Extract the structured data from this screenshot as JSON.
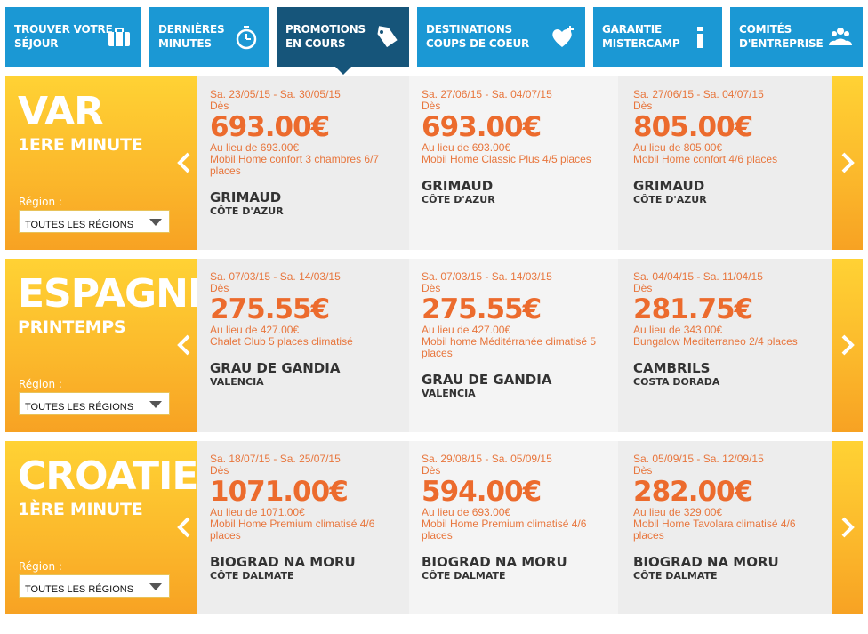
{
  "nav": {
    "items": [
      {
        "label": "TROUVER VOTRE\nSÉJOUR",
        "icon": "suitcase-icon",
        "active": false
      },
      {
        "label": "DERNIÈRES\nMINUTES",
        "icon": "stopwatch-icon",
        "active": false
      },
      {
        "label": "PROMOTIONS\nEN COURS",
        "icon": "price-tag-icon",
        "active": true
      },
      {
        "label": "DESTINATIONS\nCOUPS DE COEUR",
        "icon": "heart-plus-icon",
        "active": false
      },
      {
        "label": "GARANTIE\nMISTERCAMP",
        "icon": "info-icon",
        "active": false
      },
      {
        "label": "COMITÉS\nD'ENTREPRISE",
        "icon": "group-icon",
        "active": false
      }
    ]
  },
  "colors": {
    "nav_blue": "#1b98d4",
    "nav_active": "#16557a",
    "accent_orange": "#ec6b2d",
    "panel_yellow": "#fbb72b"
  },
  "promos": [
    {
      "destination": "VAR",
      "subtitle": "1ERE MINUTE",
      "region_label": "Région :",
      "region_value": "TOUTES LES RÉGIONS",
      "offers": [
        {
          "dates": "Sa. 23/05/15 - Sa. 30/05/15",
          "from_label": "Dès",
          "price": "693.00€",
          "instead": "Au lieu de 693.00€",
          "desc": "Mobil Home confort 3 chambres 6/7 places",
          "town": "GRIMAUD",
          "region": "CÔTE D'AZUR"
        },
        {
          "dates": "Sa. 27/06/15 - Sa. 04/07/15",
          "from_label": "Dès",
          "price": "693.00€",
          "instead": "Au lieu de 693.00€",
          "desc": "Mobil Home Classic Plus 4/5 places",
          "town": "GRIMAUD",
          "region": "CÔTE D'AZUR"
        },
        {
          "dates": "Sa. 27/06/15 - Sa. 04/07/15",
          "from_label": "Dès",
          "price": "805.00€",
          "instead": "Au lieu de 805.00€",
          "desc": "Mobil Home confort 4/6 places",
          "town": "GRIMAUD",
          "region": "CÔTE D'AZUR"
        }
      ]
    },
    {
      "destination": "ESPAGNE",
      "subtitle": "PRINTEMPS",
      "region_label": "Région :",
      "region_value": "TOUTES LES RÉGIONS",
      "offers": [
        {
          "dates": "Sa. 07/03/15 - Sa. 14/03/15",
          "from_label": "Dès",
          "price": "275.55€",
          "instead": "Au lieu de 427.00€",
          "desc": "Chalet Club 5 places climatisé",
          "town": "GRAU DE GANDIA",
          "region": "VALENCIA"
        },
        {
          "dates": "Sa. 07/03/15 - Sa. 14/03/15",
          "from_label": "Dès",
          "price": "275.55€",
          "instead": "Au lieu de 427.00€",
          "desc": "Mobil home Méditérranée climatisé 5 places",
          "town": "GRAU DE GANDIA",
          "region": "VALENCIA"
        },
        {
          "dates": "Sa. 04/04/15 - Sa. 11/04/15",
          "from_label": "Dès",
          "price": "281.75€",
          "instead": "Au lieu de 343.00€",
          "desc": "Bungalow Mediterraneo 2/4 places",
          "town": "CAMBRILS",
          "region": "COSTA DORADA"
        }
      ]
    },
    {
      "destination": "CROATIE",
      "subtitle": "1ÈRE MINUTE",
      "region_label": "Région :",
      "region_value": "TOUTES LES RÉGIONS",
      "offers": [
        {
          "dates": "Sa. 18/07/15 - Sa. 25/07/15",
          "from_label": "Dès",
          "price": "1071.00€",
          "instead": "Au lieu de 1071.00€",
          "desc": "Mobil Home Premium climatisé 4/6 places",
          "town": "BIOGRAD NA MORU",
          "region": "CÔTE DALMATE"
        },
        {
          "dates": "Sa. 29/08/15 - Sa. 05/09/15",
          "from_label": "Dès",
          "price": "594.00€",
          "instead": "Au lieu de 693.00€",
          "desc": "Mobil Home Premium climatisé 4/6 places",
          "town": "BIOGRAD NA MORU",
          "region": "CÔTE DALMATE"
        },
        {
          "dates": "Sa. 05/09/15 - Sa. 12/09/15",
          "from_label": "Dès",
          "price": "282.00€",
          "instead": "Au lieu de 329.00€",
          "desc": "Mobil Home Tavolara climatisé 4/6 places",
          "town": "BIOGRAD NA MORU",
          "region": "CÔTE DALMATE"
        }
      ]
    }
  ]
}
